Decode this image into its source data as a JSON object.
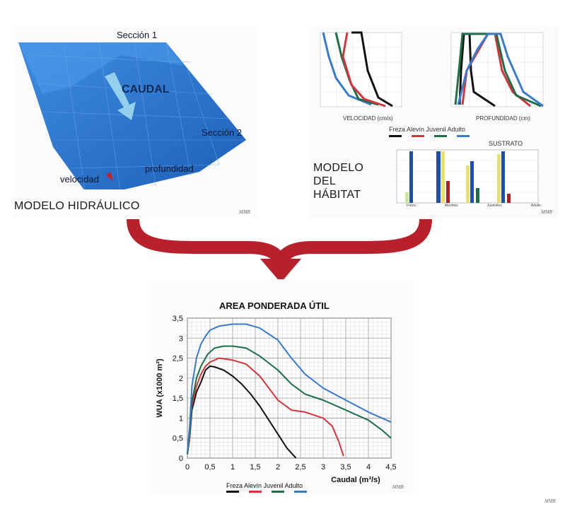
{
  "hydraulic": {
    "section1": "Sección 1",
    "section2": "Sección 2",
    "flow_label": "CAUDAL",
    "velocity": "velocidad",
    "depth": "profundidad",
    "title": "MODELO HIDRÁULICO",
    "watermark": "MMR"
  },
  "habitat": {
    "title_line1": "MODELO",
    "title_line2": "DEL",
    "title_line3": "HÁBITAT",
    "velocity_axis": "VELOCIDAD (cm/s)",
    "depth_axis": "PROFUNDIDAD (cm)",
    "legend_label": "Freza Alevín Juvenil Adulto",
    "substrate_title": "SUSTRATO",
    "substrate_categories": [
      "Freza",
      "Alevines",
      "Juveniles",
      "Adulto"
    ],
    "watermark": "MMR"
  },
  "wua": {
    "title": "AREA PONDERADA ÚTIL",
    "ylabel": "WUA (x1000 m²)",
    "xlabel": "Caudal (m³/s)",
    "legend_label": "Freza Alevín Juvenil Adulto",
    "watermark_center": "MMR",
    "watermark_corner": "MMR"
  },
  "colors": {
    "freza": "#111111",
    "alevin": "#d4343c",
    "juvenil": "#1f6e4a",
    "adulto": "#3a7bc8",
    "arrow": "#b8202c",
    "water": "#2a6fcc"
  },
  "chart_data": {
    "type": "line",
    "title": "AREA PONDERADA ÚTIL",
    "xlabel": "Caudal (m³/s)",
    "ylabel": "WUA (x1000 m²)",
    "xlim": [
      0,
      4.5
    ],
    "ylim": [
      0,
      3.5
    ],
    "xticks": [
      "0",
      "0,5",
      "1",
      "1,5",
      "2",
      "2,5",
      "3",
      "3,5",
      "4",
      "4,5"
    ],
    "yticks": [
      "0",
      "0,5",
      "1",
      "1,5",
      "2",
      "2,5",
      "3",
      "3,5"
    ],
    "grid": true,
    "legend_position": "bottom",
    "series": [
      {
        "name": "Freza",
        "color": "#111111",
        "x": [
          0,
          0.05,
          0.1,
          0.2,
          0.3,
          0.4,
          0.5,
          0.6,
          0.8,
          1.0,
          1.2,
          1.4,
          1.6,
          1.8,
          2.0,
          2.2,
          2.4
        ],
        "y": [
          0.1,
          0.5,
          1.2,
          1.65,
          1.9,
          2.2,
          2.3,
          2.28,
          2.2,
          2.05,
          1.85,
          1.6,
          1.3,
          0.95,
          0.6,
          0.25,
          0
        ]
      },
      {
        "name": "Alevín",
        "color": "#d4343c",
        "x": [
          0,
          0.05,
          0.1,
          0.2,
          0.3,
          0.4,
          0.5,
          0.7,
          1.0,
          1.3,
          1.6,
          1.8,
          2.0,
          2.3,
          2.6,
          3.0,
          3.2,
          3.35,
          3.45
        ],
        "y": [
          0.1,
          0.5,
          1.3,
          1.8,
          2.1,
          2.3,
          2.4,
          2.5,
          2.45,
          2.35,
          2.05,
          1.75,
          1.45,
          1.2,
          1.15,
          1.0,
          0.8,
          0.4,
          0.05
        ]
      },
      {
        "name": "Juvenil",
        "color": "#1f6e4a",
        "x": [
          0,
          0.05,
          0.1,
          0.2,
          0.3,
          0.45,
          0.6,
          0.8,
          1.0,
          1.3,
          1.6,
          2.0,
          2.3,
          2.6,
          3.0,
          3.5,
          4.0,
          4.3,
          4.5
        ],
        "y": [
          0.1,
          0.6,
          1.4,
          2.0,
          2.3,
          2.6,
          2.75,
          2.8,
          2.8,
          2.75,
          2.55,
          2.2,
          1.85,
          1.6,
          1.45,
          1.2,
          0.95,
          0.7,
          0.5
        ]
      },
      {
        "name": "Adulto",
        "color": "#3a7bc8",
        "x": [
          0,
          0.05,
          0.1,
          0.2,
          0.3,
          0.4,
          0.5,
          0.7,
          1.0,
          1.3,
          1.6,
          2.0,
          2.3,
          2.6,
          3.0,
          3.5,
          4.0,
          4.5
        ],
        "y": [
          0.15,
          0.8,
          1.8,
          2.5,
          2.85,
          3.05,
          3.2,
          3.3,
          3.35,
          3.35,
          3.25,
          2.95,
          2.5,
          2.1,
          1.75,
          1.45,
          1.15,
          0.9
        ]
      }
    ]
  }
}
